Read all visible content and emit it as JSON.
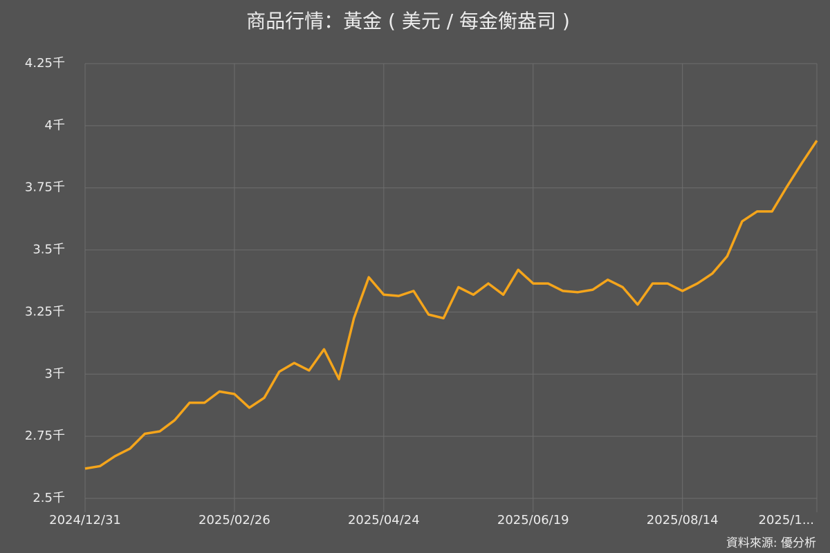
{
  "chart_data": {
    "type": "line",
    "title": "商品行情：黃金 ( 美元 / 每金衡盎司 )",
    "source": "資料來源: 優分析",
    "categories": [
      "2024/12/31",
      null,
      null,
      null,
      null,
      null,
      null,
      null,
      null,
      null,
      "2025/02/26",
      null,
      null,
      null,
      null,
      null,
      null,
      null,
      null,
      null,
      "2025/04/24",
      null,
      null,
      null,
      null,
      null,
      null,
      null,
      null,
      null,
      "2025/06/19",
      null,
      null,
      null,
      null,
      null,
      null,
      null,
      null,
      null,
      "2025/08/14",
      null,
      null,
      null,
      null,
      null,
      null,
      null,
      null,
      "2025/1..."
    ],
    "values": [
      2620,
      2630,
      2670,
      2700,
      2760,
      2770,
      2815,
      2885,
      2885,
      2930,
      2920,
      2865,
      2905,
      3010,
      3045,
      3015,
      3100,
      2980,
      3225,
      3390,
      3320,
      3315,
      3335,
      3240,
      3225,
      3350,
      3320,
      3365,
      3320,
      3420,
      3365,
      3365,
      3335,
      3330,
      3340,
      3380,
      3350,
      3280,
      3365,
      3365,
      3335,
      3365,
      3405,
      3475,
      3615,
      3655,
      3655,
      3755,
      3850,
      3940
    ],
    "color": "#f5a51b",
    "ylim": [
      2500,
      4250
    ],
    "yticks": [
      {
        "value": 2500,
        "label": "2.5千"
      },
      {
        "value": 2750,
        "label": "2.75千"
      },
      {
        "value": 3000,
        "label": "3千"
      },
      {
        "value": 3250,
        "label": "3.25千"
      },
      {
        "value": 3500,
        "label": "3.5千"
      },
      {
        "value": 3750,
        "label": "3.75千"
      },
      {
        "value": 4000,
        "label": "4千"
      },
      {
        "value": 4250,
        "label": "4.25千"
      }
    ],
    "grid": true
  }
}
